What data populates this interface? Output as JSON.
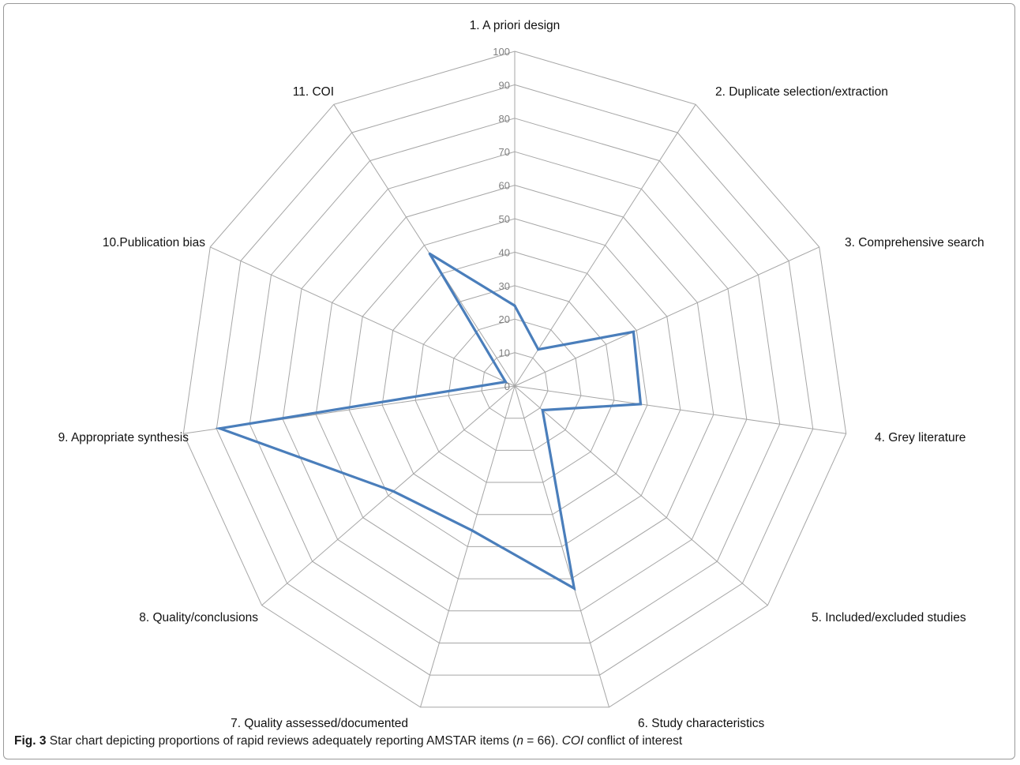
{
  "chart_data": {
    "type": "radar",
    "categories": [
      "1. A priori design",
      "2. Duplicate selection/extraction",
      "3. Comprehensive search",
      "4. Grey literature",
      "5. Included/excluded studies",
      "6. Study characteristics",
      "7. Quality assessed/documented",
      "8. Quality/conclusions",
      "9. Appropriate synthesis",
      "10.Publication bias",
      "11. COI"
    ],
    "series": [
      {
        "values": [
          24,
          13,
          39,
          38,
          11,
          63,
          45,
          48,
          89,
          3,
          47
        ]
      }
    ],
    "rlim": [
      0,
      100
    ],
    "ticks": [
      "0",
      "10",
      "20",
      "30",
      "40",
      "50",
      "60",
      "70",
      "80",
      "90",
      "100"
    ],
    "grid": true,
    "legend": "none",
    "colors": {
      "series": "#4a7ebb",
      "grid": "#a6a6a6",
      "tick_label": "#7f7f7f"
    }
  },
  "caption": {
    "label": "Fig. 3",
    "text_1": " Star chart depicting proportions of rapid reviews adequately reporting AMSTAR items (",
    "n_var": "n",
    "text_2": " = 66). ",
    "abbr": "COI",
    "text_3": " conflict of interest"
  }
}
